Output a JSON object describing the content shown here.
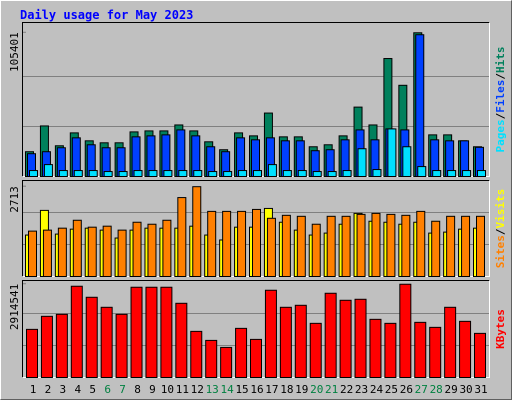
{
  "chart_data": [
    {
      "type": "bar",
      "title": "Daily usage for May 2023",
      "categories": [
        "1",
        "2",
        "3",
        "4",
        "5",
        "6",
        "7",
        "8",
        "9",
        "10",
        "11",
        "12",
        "13",
        "14",
        "15",
        "16",
        "17",
        "18",
        "19",
        "20",
        "21",
        "22",
        "23",
        "24",
        "25",
        "26",
        "27",
        "28",
        "29",
        "30",
        "31"
      ],
      "weekends": [
        5,
        6,
        12,
        13,
        19,
        20,
        26,
        27
      ],
      "weekend_color": "#008040",
      "legend_separator": "/",
      "ylim": [
        0,
        110000
      ],
      "yticks": [
        105401
      ],
      "series": [
        {
          "name": "Hits",
          "color": "#00805c",
          "values": [
            18175,
            37077,
            22537,
            31988,
            26172,
            24718,
            24718,
            32715,
            33442,
            33442,
            37804,
            33442,
            25445,
            19629,
            31988,
            29807,
            46528,
            29080,
            29080,
            21810,
            23264,
            29807,
            50890,
            37804,
            86513,
            66884,
            105401,
            30534,
            30534,
            26172,
            21810
          ]
        },
        {
          "name": "Files",
          "color": "#0040ff",
          "values": [
            16721,
            18175,
            21083,
            28353,
            23264,
            21083,
            21083,
            29080,
            29807,
            30534,
            34169,
            29807,
            21810,
            18175,
            28353,
            26899,
            28353,
            26172,
            26172,
            18902,
            19629,
            26899,
            34169,
            26899,
            34896,
            34169,
            103961,
            26899,
            26172,
            26172,
            21400
          ]
        },
        {
          "name": "Pages",
          "color": "#00e0ff",
          "values": [
            4362,
            8724,
            4362,
            4362,
            4362,
            3636,
            3636,
            4362,
            4362,
            4362,
            4362,
            4362,
            3636,
            3636,
            4362,
            4362,
            8724,
            4362,
            4362,
            3636,
            3636,
            4362,
            20356,
            5090,
            34896,
            21810,
            7270,
            4362,
            4362,
            4362,
            4362
          ]
        }
      ]
    },
    {
      "type": "bar",
      "ylim": [
        0,
        2900
      ],
      "yticks": [
        2713
      ],
      "series": [
        {
          "name": "Visits",
          "color": "#ffff00",
          "values": [
            1252,
            1997,
            1281,
            1430,
            1460,
            1401,
            1162,
            1401,
            1460,
            1460,
            1460,
            1520,
            1252,
            1103,
            1490,
            1490,
            2056,
            1639,
            1401,
            1252,
            1311,
            1579,
            1907,
            1669,
            1639,
            1579,
            1639,
            1311,
            1341,
            1430,
            1460
          ]
        },
        {
          "name": "Sites",
          "color": "#ff8000",
          "values": [
            1371,
            1401,
            1460,
            1699,
            1490,
            1520,
            1401,
            1639,
            1579,
            1699,
            2384,
            2713,
            1967,
            1967,
            1967,
            2026,
            1758,
            1848,
            1818,
            1579,
            1818,
            1818,
            1877,
            1907,
            1877,
            1848,
            1967,
            1669,
            1818,
            1818,
            1818
          ]
        }
      ]
    },
    {
      "type": "bar",
      "ylim": [
        0,
        3000000
      ],
      "yticks": [
        2914541
      ],
      "series": [
        {
          "name": "KBytes",
          "color": "#ff0000",
          "values": [
            1504272,
            1911679,
            1974357,
            2851849,
            2507120,
            2193730,
            1974357,
            2820510,
            2820510,
            2820510,
            2319086,
            1441594,
            1159543,
            940170,
            1535611,
            1190882,
            2726493,
            2193730,
            2256408,
            1692306,
            2632476,
            2413103,
            2444442,
            1817662,
            1692306,
            2914541,
            1723645,
            1566950,
            2193730,
            1754984,
            1378916
          ]
        }
      ]
    }
  ]
}
